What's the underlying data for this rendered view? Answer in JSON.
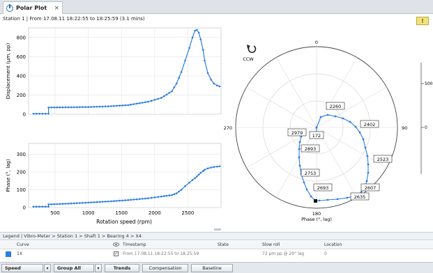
{
  "tab": {
    "title": "Polar Plot",
    "close": "×"
  },
  "station_info": "Station 1 | From 17.08.11 18:22:55 to 18:25:59 (3.1 mins)",
  "warning_label": "!",
  "displacement_chart": {
    "ylabel": "Displacement (µm, pp)",
    "yticks": [
      "0",
      "200",
      "400",
      "600",
      "800"
    ],
    "ylim": [
      0,
      900
    ],
    "xlim": [
      100,
      3000
    ]
  },
  "phase_chart": {
    "ylabel": "Phase (°, lag)",
    "yticks": [
      "0",
      "100",
      "200",
      "300"
    ],
    "ylim": [
      0,
      360
    ],
    "xticks": [
      "500",
      "1000",
      "1500",
      "2000",
      "2500"
    ],
    "xlabel": "Rotation speed (rpm)"
  },
  "polar": {
    "ccw_label": "CCW",
    "angles": {
      "top": "0",
      "right": "90",
      "bottom": "180",
      "left": "270"
    },
    "phase_label": "Phase (°, lag)",
    "scale_ticks": [
      "500",
      "0"
    ],
    "labels": [
      "2260",
      "2402",
      "2523",
      "2607",
      "2635",
      "2693",
      "2753",
      "2893",
      "2979",
      "172"
    ]
  },
  "chart_data": [
    {
      "type": "line",
      "title": "",
      "xlabel": "",
      "ylabel": "Displacement (µm, pp)",
      "xlim": [
        100,
        3000
      ],
      "ylim": [
        0,
        900
      ],
      "x": [
        172,
        400,
        401,
        700,
        1000,
        1300,
        1600,
        1900,
        2100,
        2260,
        2330,
        2402,
        2460,
        2523,
        2570,
        2607,
        2635,
        2665,
        2693,
        2730,
        2753,
        2800,
        2850,
        2893,
        2940,
        2979
      ],
      "series": [
        {
          "values": [
            5,
            5,
            70,
            72,
            75,
            82,
            95,
            130,
            170,
            240,
            320,
            440,
            560,
            690,
            800,
            870,
            880,
            850,
            780,
            670,
            560,
            430,
            360,
            320,
            300,
            290
          ]
        }
      ]
    },
    {
      "type": "line",
      "title": "",
      "xlabel": "Rotation speed (rpm)",
      "ylabel": "Phase (°, lag)",
      "xlim": [
        100,
        3000
      ],
      "ylim": [
        0,
        360
      ],
      "x": [
        172,
        400,
        401,
        700,
        1000,
        1300,
        1600,
        1900,
        2100,
        2260,
        2330,
        2402,
        2460,
        2523,
        2570,
        2607,
        2635,
        2665,
        2693,
        2730,
        2753,
        2800,
        2850,
        2893,
        2940,
        2979
      ],
      "series": [
        {
          "values": [
            5,
            5,
            18,
            22,
            28,
            34,
            42,
            52,
            62,
            70,
            80,
            100,
            120,
            140,
            155,
            165,
            175,
            185,
            195,
            205,
            212,
            220,
            225,
            228,
            230,
            232
          ]
        }
      ]
    },
    {
      "type": "scatter",
      "title": "",
      "xlabel": "",
      "ylabel": "Phase (°, lag)",
      "x": [
        2260,
        2402,
        2523,
        2607,
        2635,
        2693,
        2753,
        2893,
        2979,
        172
      ],
      "series": [
        {
          "values": [
            15,
            70,
            118,
            150,
            165,
            200,
            228,
            262,
            272,
            0
          ]
        }
      ]
    }
  ],
  "legend": {
    "breadcrumb": "Legend | Vibro-Meter > Station 1 > Shaft 1 > Bearing 4 > X4"
  },
  "table": {
    "headers": [
      "Curve",
      "Timestamp",
      "State",
      "Slow roll",
      "Location"
    ],
    "eye_icon": "eye-icon",
    "row": {
      "curve": "1X",
      "check": "✓",
      "timestamp": "From 17.08.11 18:22:55 to 18:25:59",
      "state": "",
      "slow_roll": "72 µm pp @ 20° lag",
      "location": "0"
    }
  },
  "toolbar": {
    "speed": "Speed",
    "group": "Group All",
    "trends": "Trends",
    "compensation": "Compensation",
    "baseline": "Baseline",
    "dropdown": "▾"
  },
  "colors": {
    "series": "#2a7de1",
    "grid": "#e4e4e4"
  }
}
